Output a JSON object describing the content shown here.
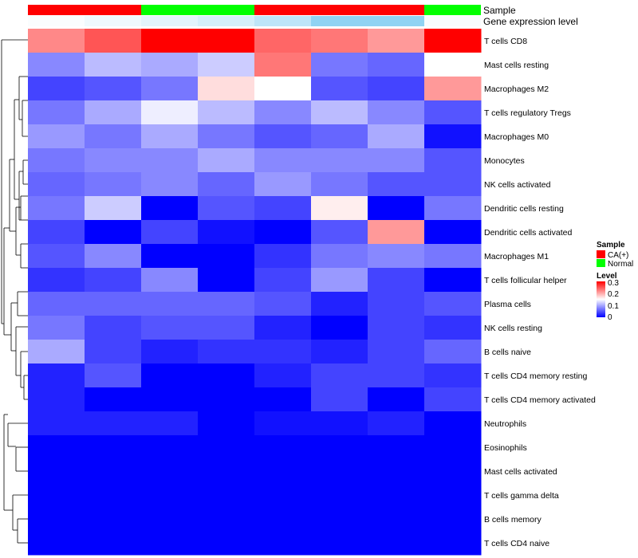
{
  "chart_data": {
    "type": "heatmap",
    "title": "",
    "annotation_tracks": [
      {
        "name": "Sample",
        "type": "categorical",
        "values": [
          "CA(+)",
          "CA(+)",
          "Normal",
          "Normal",
          "CA(+)",
          "CA(+)",
          "CA(+)",
          "Normal"
        ]
      },
      {
        "name": "Gene expression level",
        "type": "continuous",
        "values": [
          0.98,
          0.93,
          0.88,
          0.82,
          0.72,
          0.52,
          0.52,
          0.38
        ]
      }
    ],
    "rows": [
      "T cells CD8",
      "Mast cells resting",
      "Macrophages M2",
      "T cells regulatory  Tregs",
      "Macrophages M0",
      "Monocytes",
      "NK cells activated",
      "Dendritic cells resting",
      "Dendritic cells activated",
      "Macrophages M1",
      "T cells follicular helper",
      "Plasma cells",
      "NK cells resting",
      "B cells naive",
      "T cells CD4 memory resting",
      "T cells CD4 memory activated",
      "Neutrophils",
      "Eosinophils",
      "Mast cells activated",
      "T cells gamma delta",
      "B cells memory",
      "T cells CD4 naive"
    ],
    "columns": 8,
    "values": [
      [
        0.22,
        0.25,
        0.3,
        0.3,
        0.24,
        0.23,
        0.21,
        0.3
      ],
      [
        0.08,
        0.11,
        0.1,
        0.12,
        0.23,
        0.07,
        0.06,
        0.15
      ],
      [
        0.04,
        0.05,
        0.07,
        0.17,
        0.15,
        0.05,
        0.04,
        0.21
      ],
      [
        0.07,
        0.1,
        0.14,
        0.11,
        0.08,
        0.11,
        0.08,
        0.05
      ],
      [
        0.09,
        0.07,
        0.1,
        0.07,
        0.05,
        0.06,
        0.1,
        0.01
      ],
      [
        0.07,
        0.08,
        0.08,
        0.1,
        0.08,
        0.08,
        0.08,
        0.05
      ],
      [
        0.06,
        0.07,
        0.08,
        0.06,
        0.09,
        0.07,
        0.05,
        0.05
      ],
      [
        0.07,
        0.12,
        0.0,
        0.05,
        0.04,
        0.16,
        0.0,
        0.07
      ],
      [
        0.04,
        0.0,
        0.04,
        0.01,
        0.0,
        0.05,
        0.21,
        0.0
      ],
      [
        0.05,
        0.08,
        0.0,
        0.0,
        0.03,
        0.07,
        0.08,
        0.07
      ],
      [
        0.03,
        0.04,
        0.08,
        0.0,
        0.04,
        0.09,
        0.04,
        0.0
      ],
      [
        0.06,
        0.06,
        0.06,
        0.06,
        0.05,
        0.02,
        0.04,
        0.05
      ],
      [
        0.07,
        0.04,
        0.05,
        0.05,
        0.02,
        0.0,
        0.04,
        0.03
      ],
      [
        0.1,
        0.04,
        0.02,
        0.03,
        0.03,
        0.02,
        0.04,
        0.06
      ],
      [
        0.02,
        0.05,
        0.0,
        0.0,
        0.02,
        0.04,
        0.04,
        0.03
      ],
      [
        0.02,
        0.0,
        0.0,
        0.0,
        0.0,
        0.04,
        0.0,
        0.04
      ],
      [
        0.02,
        0.02,
        0.02,
        0.0,
        0.01,
        0.01,
        0.02,
        0.0
      ],
      [
        0.0,
        0.0,
        0.0,
        0.0,
        0.0,
        0.0,
        0.0,
        0.0
      ],
      [
        0.0,
        0.0,
        0.0,
        0.0,
        0.0,
        0.0,
        0.0,
        0.0
      ],
      [
        0.0,
        0.0,
        0.0,
        0.0,
        0.0,
        0.0,
        0.0,
        0.0
      ],
      [
        0.0,
        0.0,
        0.0,
        0.0,
        0.0,
        0.0,
        0.0,
        0.0
      ],
      [
        0.0,
        0.0,
        0.0,
        0.0,
        0.0,
        0.0,
        0.0,
        0.0
      ]
    ],
    "color_scale": {
      "low": "#0000ff",
      "mid": "#ffffff",
      "high": "#ff0000",
      "min": 0,
      "mid_value": 0.15,
      "max": 0.3
    },
    "sample_colors": {
      "CA(+)": "#ff0000",
      "Normal": "#00ff00"
    },
    "expression_colors": {
      "low": "#ffffff",
      "high": "#6ec6ef"
    },
    "row_dendrogram": true,
    "column_dendrogram": false,
    "legend": {
      "sample_title": "Sample",
      "sample_items": [
        "CA(+)",
        "Normal"
      ],
      "level_title": "Level",
      "level_ticks": [
        "0.3",
        "0.2",
        "0.1",
        "0"
      ],
      "placement": "right"
    }
  }
}
